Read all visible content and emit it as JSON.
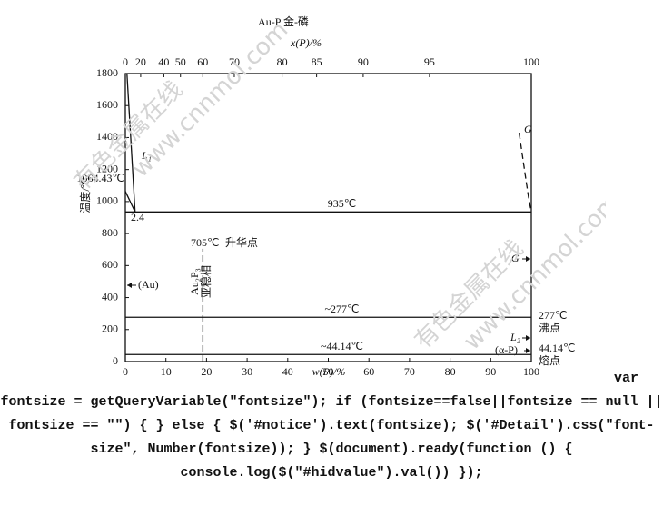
{
  "chart_data": {
    "type": "phase-diagram",
    "title": "Au-P 金-磷",
    "xlabel": "w(P)/%",
    "x2label": "x(P)/%",
    "ylabel": "温度/℃",
    "xlim": [
      0,
      100
    ],
    "xticks": [
      0,
      10,
      20,
      30,
      40,
      50,
      60,
      70,
      80,
      90,
      100
    ],
    "x2lim": [
      0,
      100
    ],
    "x2ticks": [
      0,
      20,
      40,
      50,
      60,
      70,
      80,
      85,
      90,
      95,
      100
    ],
    "ylim": [
      0,
      1800
    ],
    "yticks": [
      0,
      200,
      400,
      600,
      800,
      1000,
      1200,
      1400,
      1600,
      1800
    ],
    "endpoints": [
      "Au",
      "P"
    ],
    "curves": [
      {
        "x": [
          0,
          2.4
        ],
        "y": [
          1064.43,
          935
        ],
        "style": "solid"
      },
      {
        "x": [
          0.4,
          2.4
        ],
        "y": [
          1800,
          935
        ],
        "style": "solid"
      },
      {
        "x": [
          97,
          97.8,
          98.6,
          99.3,
          100
        ],
        "y": [
          1430,
          1290,
          1150,
          1030,
          935
        ],
        "style": "dashed"
      },
      {
        "x": [
          19.1,
          19.1
        ],
        "y": [
          0,
          705
        ],
        "style": "dashed"
      }
    ],
    "isotherms": [
      {
        "y": 935,
        "label": "935℃"
      },
      {
        "y": 277,
        "label": "~277℃"
      },
      {
        "y": 44.14,
        "label": "~44.14℃"
      }
    ],
    "labels": [
      "1064.43℃",
      "2.4",
      "L₁",
      "705℃",
      "升华点",
      "Au₂P₃",
      "亚稳相",
      "(Au)",
      "G",
      "G",
      "L₂",
      "(α-P)",
      "277℃",
      "沸点",
      "44.14℃",
      "熔点"
    ],
    "watermarks": [
      "有色金属在线",
      "www.cnnmol.com",
      "有色金属在线",
      "www.cnnmol.com"
    ]
  },
  "page_text": "var fontsize = getQueryVariable(\"fontsize\"); if (fontsize==false||fontsize == null || fontsize == \"\") { } else { $('#notice').text(fontsize); $('#Detail').css(\"font-size\", Number(fontsize)); } $(document).ready(function () { console.log($(\"#hidvalue\").val()) });"
}
